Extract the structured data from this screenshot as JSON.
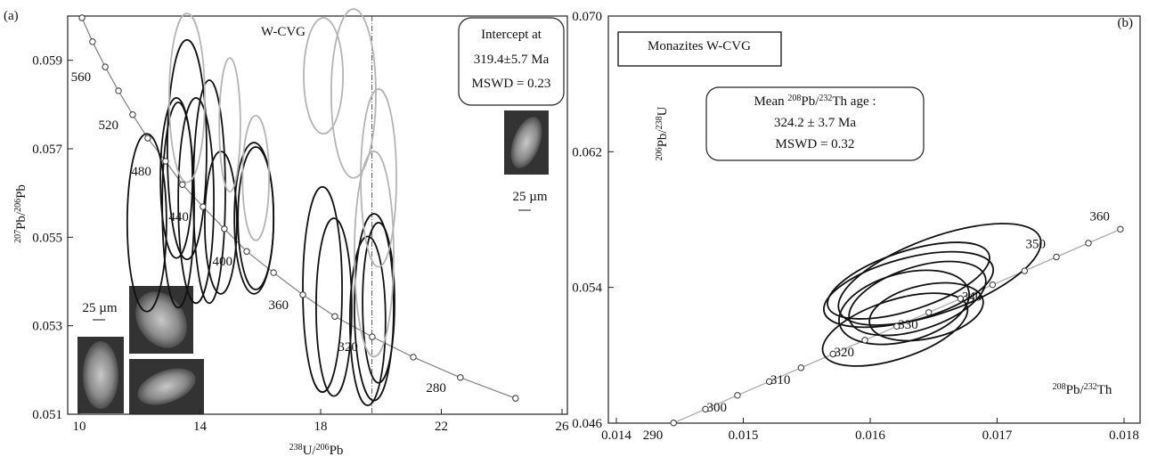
{
  "chart_data": [
    {
      "type": "scatter",
      "panel_label": "(a)",
      "title": "W-CVG",
      "xlabel": [
        {
          "text": "238",
          "sup": true
        },
        {
          "text": "U/",
          "sup": false
        },
        {
          "text": "206",
          "sup": true
        },
        {
          "text": "Pb",
          "sup": false
        }
      ],
      "ylabel": [
        {
          "text": "207",
          "sup": true
        },
        {
          "text": "Pb/",
          "sup": false
        },
        {
          "text": "206",
          "sup": true
        },
        {
          "text": "Pb",
          "sup": false
        }
      ],
      "xlim": [
        10,
        26
      ],
      "xticks": [
        10,
        14,
        18,
        22,
        26
      ],
      "ylim": [
        0.051,
        0.06
      ],
      "yticks": [
        0.051,
        0.053,
        0.055,
        0.057,
        0.059
      ],
      "concordia": {
        "color": "#888888",
        "x": [
          10.09,
          10.44,
          10.86,
          11.3,
          11.77,
          12.27,
          12.86,
          13.42,
          14.1,
          14.81,
          15.55,
          16.44,
          17.41,
          18.47,
          19.71,
          21.07,
          22.63,
          24.46
        ],
        "y": [
          0.05996,
          0.05942,
          0.05885,
          0.05831,
          0.05777,
          0.05724,
          0.05672,
          0.05619,
          0.05569,
          0.05519,
          0.05468,
          0.0542,
          0.0537,
          0.05321,
          0.05275,
          0.05229,
          0.05183,
          0.05136
        ],
        "labels": [
          null,
          null,
          "560",
          null,
          "520",
          null,
          "480",
          null,
          "440",
          null,
          "400",
          null,
          "360",
          null,
          "320",
          null,
          "280",
          null
        ]
      },
      "ellipse_sets": [
        {
          "color": "#111111",
          "x": [
            12.24,
            13.57,
            13.28,
            13.87,
            14.31,
            14.69,
            15.79,
            15.85,
            18.06,
            18.44,
            19.77,
            19.56,
            19.92,
            13.22
          ],
          "y": [
            0.05533,
            0.05698,
            0.05573,
            0.05583,
            0.05603,
            0.05533,
            0.05543,
            0.05543,
            0.05382,
            0.05342,
            0.05342,
            0.05311,
            0.05352,
            0.05634
          ],
          "rx": [
            0.65,
            0.65,
            0.53,
            0.59,
            0.53,
            0.53,
            0.65,
            0.59,
            0.65,
            0.59,
            0.65,
            0.59,
            0.53,
            0.53
          ],
          "ry": [
            0.00201,
            0.00248,
            0.00232,
            0.00232,
            0.00252,
            0.00161,
            0.00171,
            0.00161,
            0.00232,
            0.00201,
            0.00211,
            0.00191,
            0.00181,
            0.00181
          ]
        },
        {
          "color": "#b4b4b4",
          "x": [
            13.57,
            14.99,
            15.85,
            18.09,
            19.09,
            19.77,
            19.92
          ],
          "y": [
            0.05815,
            0.05754,
            0.05634,
            0.05865,
            0.05825,
            0.05462,
            0.05634
          ],
          "rx": [
            0.59,
            0.35,
            0.44,
            0.65,
            0.74,
            0.65,
            0.59
          ],
          "ry": [
            0.00191,
            0.00151,
            0.00141,
            0.00131,
            0.00191,
            0.00232,
            0.00201
          ]
        }
      ],
      "reference_x": 19.7,
      "annotation": [
        [
          {
            "text": "Intercept at",
            "sup": false
          }
        ],
        [
          {
            "text": "319.4±5.7 Ma",
            "sup": false
          }
        ],
        [
          {
            "text": "MSWD = 0.23",
            "sup": false
          }
        ]
      ],
      "scale_labels": [
        "25 µm",
        "25 µm"
      ]
    },
    {
      "type": "scatter",
      "panel_label": "(b)",
      "title": "Monazites W-CVG",
      "xlabel": [
        {
          "text": "208",
          "sup": true
        },
        {
          "text": "Pb/",
          "sup": false
        },
        {
          "text": "232",
          "sup": true
        },
        {
          "text": "Th",
          "sup": false
        }
      ],
      "ylabel": [
        {
          "text": "206",
          "sup": true
        },
        {
          "text": "Pb/",
          "sup": false
        },
        {
          "text": "238",
          "sup": true
        },
        {
          "text": "U",
          "sup": false
        }
      ],
      "xlim": [
        0.014,
        0.018
      ],
      "xticks": [
        0.014,
        0.015,
        0.016,
        0.017,
        0.018
      ],
      "ylim": [
        0.046,
        0.07
      ],
      "yticks": [
        0.046,
        0.054,
        0.062,
        {
          "value": 0.07,
          "label": "0.070"
        }
      ],
      "concordia": {
        "color": "#aaaaaa",
        "x": [
          0.014451,
          0.014702,
          0.014954,
          0.015205,
          0.015455,
          0.015707,
          0.015958,
          0.016209,
          0.016461,
          0.016712,
          0.016964,
          0.017216,
          0.017467,
          0.017719,
          0.017971
        ],
        "y": [
          0.046013,
          0.046825,
          0.047638,
          0.04845,
          0.049264,
          0.050077,
          0.050892,
          0.051708,
          0.052524,
          0.05334,
          0.054158,
          0.054976,
          0.055795,
          0.056613,
          0.057433
        ],
        "labels": [
          "290",
          null,
          "300",
          null,
          "310",
          null,
          "320",
          null,
          "330",
          null,
          "340",
          null,
          "350",
          null,
          "360"
        ]
      },
      "ellipse_sets": [
        {
          "color": "#111111",
          "x": [
            0.016547,
            0.016302,
            0.016302,
            0.016372,
            0.016267,
            0.016196,
            0.016442
          ],
          "y": [
            0.05477,
            0.054403,
            0.053877,
            0.053352,
            0.052827,
            0.051514,
            0.052564
          ],
          "rx": [
            0.000842,
            0.000667,
            0.000688,
            0.000561,
            0.000526,
            0.000596,
            0.000456
          ],
          "ry": [
            0.00221,
            0.00173,
            0.00184,
            0.00184,
            0.002,
            0.00173,
            0.00158
          ],
          "angle": [
            -20,
            -18,
            -15,
            -18,
            -15,
            -18,
            -12
          ]
        }
      ],
      "annotation": [
        [
          {
            "text": "Mean ",
            "sup": false
          },
          {
            "text": "208",
            "sup": true
          },
          {
            "text": "Pb/",
            "sup": false
          },
          {
            "text": "232",
            "sup": true
          },
          {
            "text": "Th age :",
            "sup": false
          }
        ],
        [
          {
            "text": "324.2 ± 3.7 Ma",
            "sup": false
          }
        ],
        [
          {
            "text": "MSWD = 0.32",
            "sup": false
          }
        ]
      ]
    }
  ]
}
